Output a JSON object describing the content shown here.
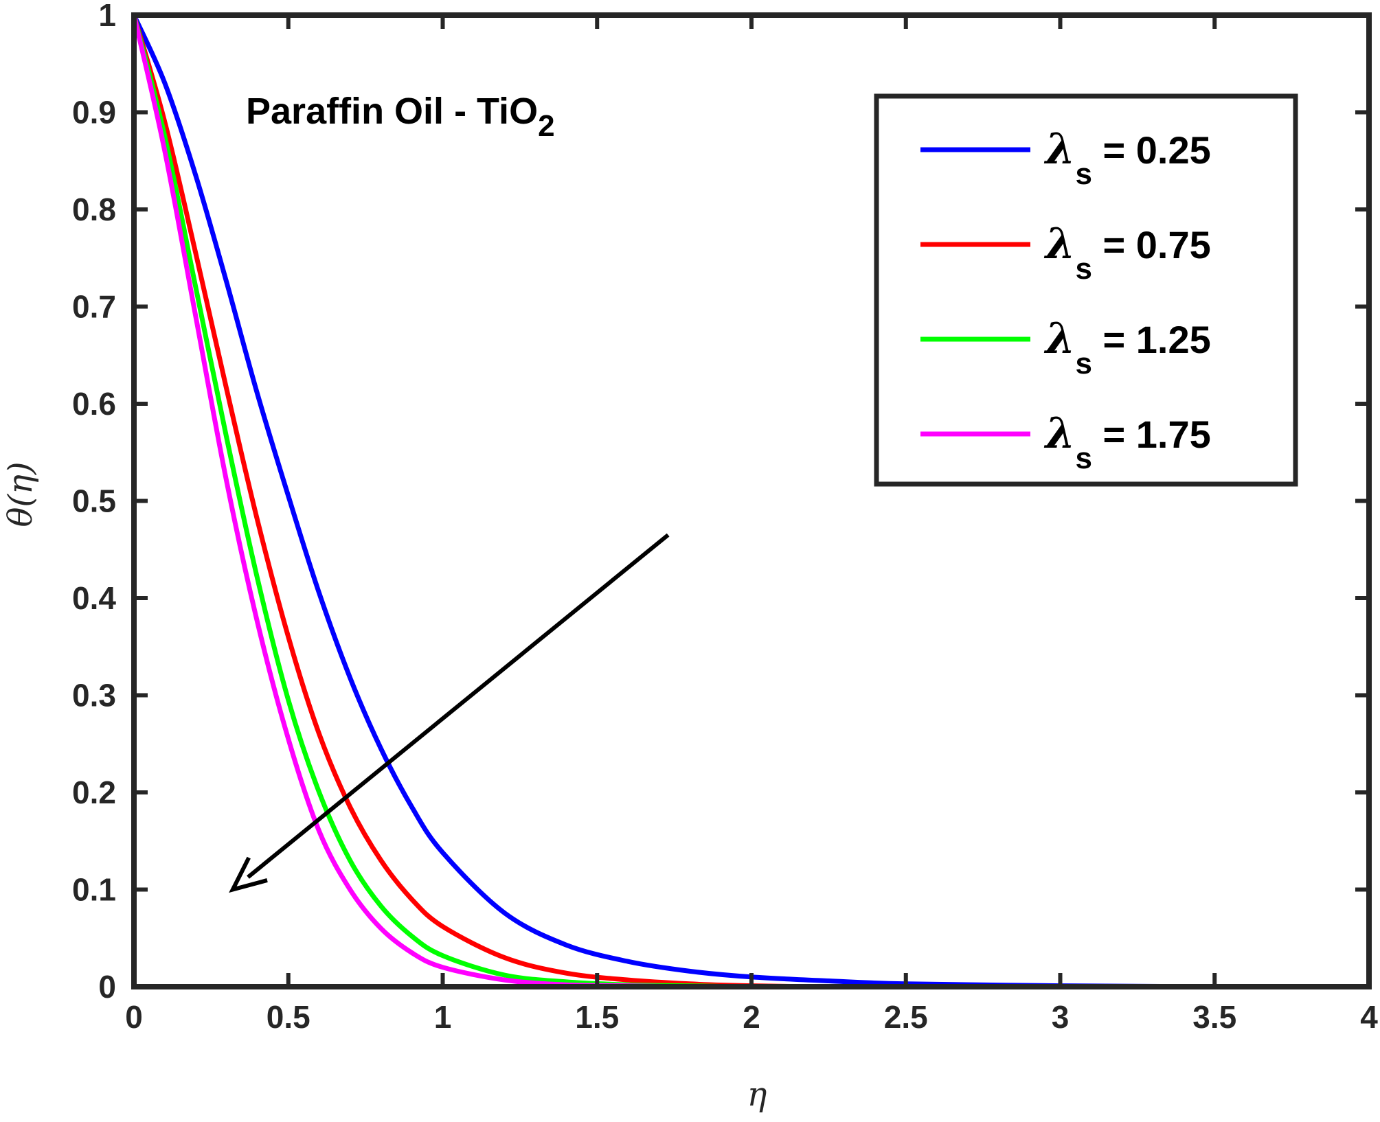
{
  "chart_data": {
    "type": "line",
    "xlabel": "η",
    "ylabel": "θ(η)",
    "xlim": [
      0,
      4
    ],
    "ylim": [
      0,
      1
    ],
    "xticks": [
      0,
      0.5,
      1,
      1.5,
      2,
      2.5,
      3,
      3.5,
      4
    ],
    "yticks": [
      0,
      0.1,
      0.2,
      0.3,
      0.4,
      0.5,
      0.6,
      0.7,
      0.8,
      0.9,
      1
    ],
    "xtick_labels": [
      "0",
      "0.5",
      "1",
      "1.5",
      "2",
      "2.5",
      "3",
      "3.5",
      "4"
    ],
    "ytick_labels": [
      "0",
      "0.1",
      "0.2",
      "0.3",
      "0.4",
      "0.5",
      "0.6",
      "0.7",
      "0.8",
      "0.9",
      "1"
    ],
    "grid": false,
    "legend_position": "top-right",
    "annotation": {
      "text": "Paraffin Oil - TiO",
      "subscript": "2"
    },
    "arrow": {
      "from": [
        1.73,
        0.465
      ],
      "to": [
        0.32,
        0.1
      ]
    },
    "series": [
      {
        "name": "λs = 0.25",
        "symbol": "λ",
        "subscript": "s",
        "value_text": " = 0.25",
        "color": "#0000ff",
        "x": [
          0,
          0.1,
          0.2,
          0.3,
          0.4,
          0.5,
          0.6,
          0.7,
          0.8,
          0.9,
          1.0,
          1.2,
          1.4,
          1.6,
          1.8,
          2.0,
          2.25,
          2.5,
          3.0,
          3.5,
          4.0
        ],
        "y": [
          1.0,
          0.93,
          0.835,
          0.725,
          0.61,
          0.505,
          0.405,
          0.318,
          0.245,
          0.185,
          0.138,
          0.076,
          0.043,
          0.026,
          0.016,
          0.01,
          0.006,
          0.003,
          0.001,
          0.0,
          0.0
        ]
      },
      {
        "name": "λs = 0.75",
        "symbol": "λ",
        "subscript": "s",
        "value_text": " = 0.75",
        "color": "#ff0000",
        "x": [
          0,
          0.1,
          0.2,
          0.3,
          0.4,
          0.5,
          0.6,
          0.7,
          0.8,
          0.9,
          1.0,
          1.2,
          1.4,
          1.6,
          1.8,
          2.0,
          2.25,
          2.5,
          3.0,
          3.5,
          4.0
        ],
        "y": [
          1.0,
          0.89,
          0.755,
          0.615,
          0.48,
          0.36,
          0.26,
          0.185,
          0.13,
          0.09,
          0.062,
          0.03,
          0.014,
          0.007,
          0.003,
          0.001,
          0.0,
          0.0,
          0.0,
          0.0,
          0.0
        ]
      },
      {
        "name": "λs = 1.25",
        "symbol": "λ",
        "subscript": "s",
        "value_text": " = 1.25",
        "color": "#00ff00",
        "x": [
          0,
          0.1,
          0.2,
          0.3,
          0.4,
          0.5,
          0.6,
          0.7,
          0.8,
          0.9,
          1.0,
          1.2,
          1.4,
          1.6,
          1.8,
          2.0,
          2.25,
          2.5,
          3.0,
          3.5,
          4.0
        ],
        "y": [
          1.0,
          0.875,
          0.72,
          0.565,
          0.42,
          0.295,
          0.2,
          0.13,
          0.083,
          0.052,
          0.032,
          0.012,
          0.005,
          0.002,
          0.001,
          0.0,
          0.0,
          0.0,
          0.0,
          0.0,
          0.0
        ]
      },
      {
        "name": "λs = 1.75",
        "symbol": "λ",
        "subscript": "s",
        "value_text": " = 1.75",
        "color": "#ff00ff",
        "x": [
          0,
          0.1,
          0.2,
          0.3,
          0.4,
          0.5,
          0.6,
          0.7,
          0.8,
          0.9,
          1.0,
          1.2,
          1.4,
          1.6,
          1.8,
          2.0,
          2.25,
          2.5,
          3.0,
          3.5,
          4.0
        ],
        "y": [
          1.0,
          0.86,
          0.69,
          0.52,
          0.375,
          0.255,
          0.16,
          0.1,
          0.06,
          0.035,
          0.02,
          0.007,
          0.002,
          0.001,
          0.0,
          0.0,
          0.0,
          0.0,
          0.0,
          0.0,
          0.0
        ]
      }
    ]
  }
}
